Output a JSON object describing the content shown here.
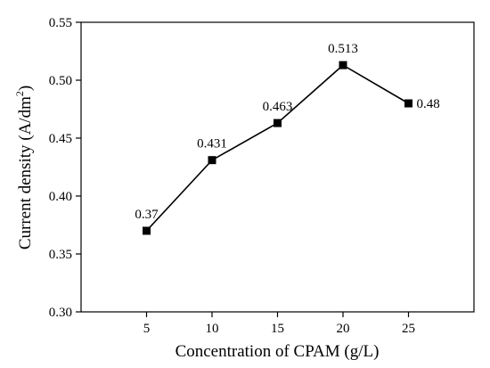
{
  "chart_data": {
    "type": "line",
    "title": "",
    "xlabel": "Concentration of CPAM (g/L)",
    "ylabel": {
      "prefix": "Current density (A/dm",
      "superscript": "2",
      "suffix": ")"
    },
    "x": [
      5,
      10,
      15,
      20,
      25
    ],
    "xticks": [
      "5",
      "10",
      "15",
      "20",
      "25"
    ],
    "xlim": [
      0,
      30
    ],
    "yticks": [
      "0.30",
      "0.35",
      "0.40",
      "0.45",
      "0.50",
      "0.55"
    ],
    "ylim": [
      0.3,
      0.55
    ],
    "series": [
      {
        "values": [
          0.37,
          0.431,
          0.463,
          0.513,
          0.48
        ],
        "labels": [
          "0.37",
          "0.431",
          "0.463",
          "0.513",
          "0.48"
        ],
        "marker": "square",
        "color": "#000000"
      }
    ],
    "grid": false,
    "legend": "none"
  }
}
